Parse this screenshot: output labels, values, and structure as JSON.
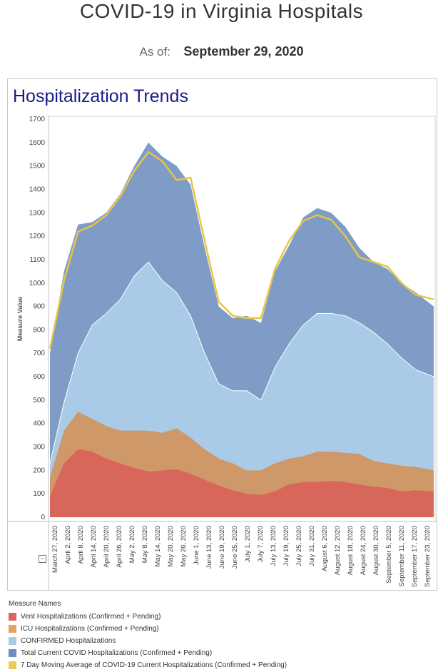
{
  "page": {
    "title": "COVID-19 in Virginia Hospitals",
    "as_of_label": "As of:",
    "as_of_value": "September 29, 2020"
  },
  "panel": {
    "title": "Hospitalization Trends"
  },
  "legend": {
    "title": "Measure Names",
    "items": [
      {
        "label": "Vent Hospitalizations (Confirmed + Pending)",
        "color": "#d9665a"
      },
      {
        "label": "ICU Hospitalizations (Confirmed + Pending)",
        "color": "#e8a05c"
      },
      {
        "label": "CONFIRMED Hospitalizations",
        "color": "#a9cbe8"
      },
      {
        "label": "Total Current COVID Hospitalizations (Confirmed + Pending)",
        "color": "#6e8fbd"
      },
      {
        "label": "7 Day Moving Average of COVID-19 Current Hospitalizations (Confirmed + Pending)",
        "color": "#e8cc5a"
      }
    ]
  },
  "colors": {
    "vent": "#d9665a",
    "icu": "#cf9868",
    "confirmed": "#a9cbe8",
    "total": "#7e9cc6",
    "avg": "#e8c547",
    "title_blue": "#1a1a8c"
  },
  "chart_data": {
    "type": "area",
    "title": "Hospitalization Trends",
    "ylabel": "Measure Value",
    "xlabel": "",
    "ylim": [
      0,
      1700
    ],
    "y_ticks": [
      0,
      100,
      200,
      300,
      400,
      500,
      600,
      700,
      800,
      900,
      1000,
      1100,
      1200,
      1300,
      1400,
      1500,
      1600,
      1700
    ],
    "x_tick_labels": [
      "March 27, 2020",
      "April 2, 2020",
      "April 8, 2020",
      "April 14, 2020",
      "April 20, 2020",
      "April 26, 2020",
      "May 2, 2020",
      "May 8, 2020",
      "May 14, 2020",
      "May 20, 2020",
      "May 26, 2020",
      "June 1, 2020",
      "June 13, 2020",
      "June 19, 2020",
      "June 25, 2020",
      "July 1, 2020",
      "July 7, 2020",
      "July 13, 2020",
      "July 19, 2020",
      "July 25, 2020",
      "July 31, 2020",
      "August 6, 2020",
      "August 12, 2020",
      "August 18, 2020",
      "August 24, 2020",
      "August 30, 2020",
      "September 5, 2020",
      "September 11, 2020",
      "September 17, 2020",
      "September 23, 2020"
    ],
    "x": [
      "2020-03-22",
      "2020-03-29",
      "2020-04-05",
      "2020-04-12",
      "2020-04-19",
      "2020-04-26",
      "2020-05-03",
      "2020-05-10",
      "2020-05-17",
      "2020-05-24",
      "2020-05-31",
      "2020-06-07",
      "2020-06-14",
      "2020-06-21",
      "2020-06-28",
      "2020-07-05",
      "2020-07-12",
      "2020-07-19",
      "2020-07-26",
      "2020-08-02",
      "2020-08-09",
      "2020-08-16",
      "2020-08-23",
      "2020-08-30",
      "2020-09-06",
      "2020-09-13",
      "2020-09-20",
      "2020-09-29"
    ],
    "series": [
      {
        "name": "Total Current COVID Hospitalizations (Confirmed + Pending)",
        "values": [
          700,
          1050,
          1250,
          1260,
          1300,
          1380,
          1500,
          1600,
          1540,
          1500,
          1420,
          1150,
          900,
          850,
          860,
          830,
          1050,
          1160,
          1280,
          1320,
          1300,
          1240,
          1150,
          1090,
          1060,
          1000,
          960,
          900
        ]
      },
      {
        "name": "CONFIRMED Hospitalizations",
        "values": [
          230,
          490,
          700,
          820,
          870,
          930,
          1030,
          1090,
          1010,
          960,
          860,
          700,
          570,
          540,
          540,
          500,
          640,
          740,
          820,
          870,
          870,
          860,
          830,
          790,
          740,
          680,
          630,
          600
        ]
      },
      {
        "name": "ICU Hospitalizations (Confirmed + Pending)",
        "values": [
          170,
          370,
          450,
          420,
          390,
          370,
          370,
          370,
          360,
          380,
          340,
          290,
          250,
          230,
          200,
          200,
          230,
          250,
          260,
          280,
          280,
          275,
          270,
          240,
          230,
          220,
          215,
          200
        ]
      },
      {
        "name": "Vent Hospitalizations (Confirmed + Pending)",
        "values": [
          90,
          230,
          290,
          280,
          250,
          230,
          210,
          195,
          200,
          205,
          185,
          160,
          135,
          115,
          100,
          95,
          110,
          140,
          150,
          150,
          155,
          150,
          140,
          130,
          125,
          110,
          115,
          110
        ]
      },
      {
        "name": "7 Day Moving Average of COVID-19 Current Hospitalizations (Confirmed + Pending)",
        "values": [
          720,
          1010,
          1220,
          1245,
          1290,
          1370,
          1480,
          1560,
          1520,
          1440,
          1450,
          1180,
          920,
          860,
          850,
          850,
          1060,
          1180,
          1265,
          1290,
          1270,
          1200,
          1110,
          1090,
          1070,
          1000,
          950,
          930
        ]
      }
    ]
  }
}
